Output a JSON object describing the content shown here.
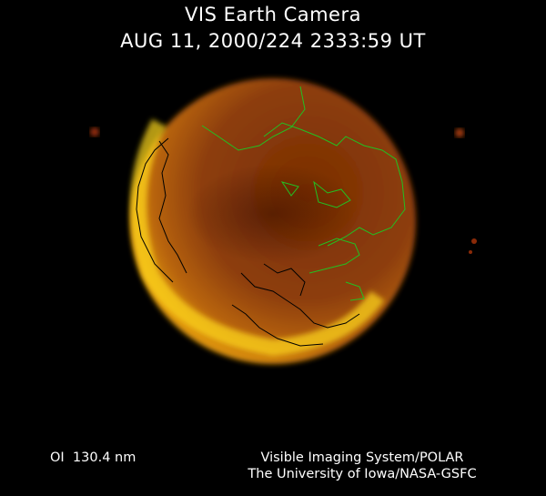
{
  "header": {
    "title": "VIS Earth Camera",
    "timestamp": "AUG 11, 2000/224 2333:59 UT"
  },
  "footer": {
    "wavelength": "OI  130.4 nm",
    "instrument": "Visible Imaging System/POLAR",
    "institution": "The University of Iowa/NASA-GSFC"
  },
  "colors": {
    "background": "#000000",
    "aurora_bright": "#ffe000",
    "dayglow": "#8a3a06",
    "coastline_day": "#22c022",
    "coastline_night": "#000000"
  }
}
